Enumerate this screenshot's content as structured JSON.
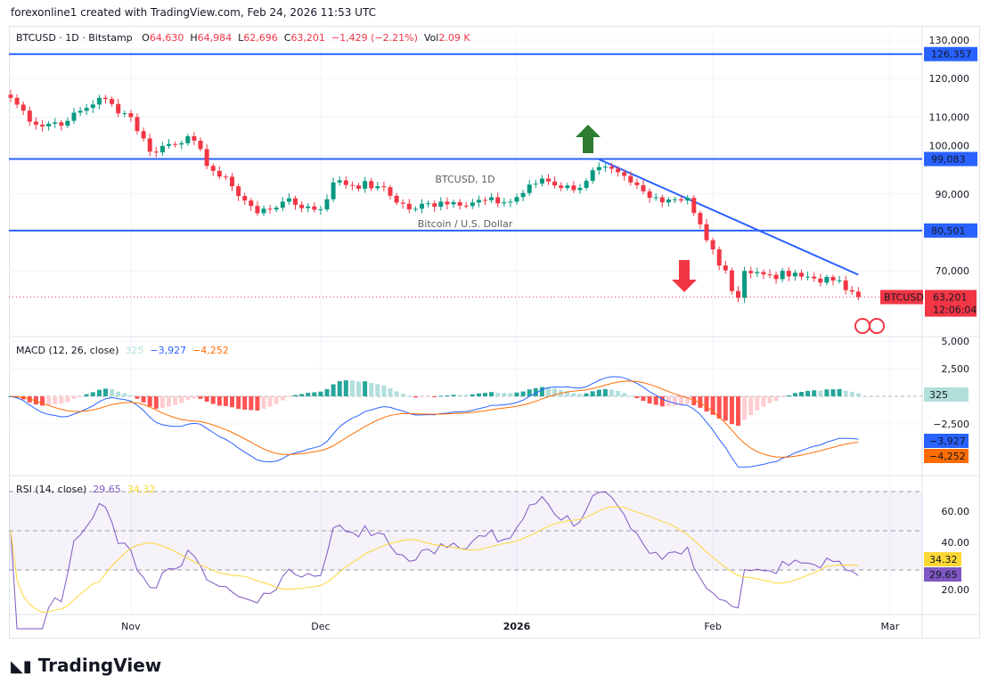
{
  "credit": "forexonline1 created with TradingView.com, Feb 24, 2026 11:53 UTC",
  "legend": {
    "symbol": "BTCUSD · 1D · Bitstamp",
    "o_label": "O",
    "o": "64,630",
    "h_label": "H",
    "h": "64,984",
    "l_label": "L",
    "l": "62,696",
    "c_label": "C",
    "c": "63,201",
    "change": "−1,429 (−2.21%)",
    "vol_label": "Vol",
    "vol": "2.09 K"
  },
  "watermark": {
    "title": "BTCUSD, 1D",
    "subtitle": "Bitcoin / U.S. Dollar"
  },
  "logo": "TradingView",
  "colors": {
    "up": "#089981",
    "down": "#f23645",
    "level": "#2962ff",
    "macd": "#2962ff",
    "signal": "#ff6d00",
    "rsi": "#7e57c2",
    "rsi_ma": "#fdd835"
  },
  "chart_data": [
    {
      "type": "candlestick",
      "symbol": "BTCUSD",
      "interval": "1D",
      "ylim": [
        55000,
        132000
      ],
      "y_ticks": [
        "130,000",
        "120,000",
        "110,000",
        "100,000",
        "90,000",
        "70,000"
      ],
      "x_ticks": [
        "Nov",
        "Dec",
        "2026",
        "Feb",
        "Mar"
      ],
      "start_date": "2025-10-13",
      "close_keypoints": [
        [
          "2025-10-13",
          115000
        ],
        [
          "2025-10-17",
          108000
        ],
        [
          "2025-10-22",
          109000
        ],
        [
          "2025-10-27",
          115000
        ],
        [
          "2025-11-01",
          110000
        ],
        [
          "2025-11-04",
          101000
        ],
        [
          "2025-11-10",
          105000
        ],
        [
          "2025-11-14",
          96000
        ],
        [
          "2025-11-17",
          92000
        ],
        [
          "2025-11-21",
          85000
        ],
        [
          "2025-11-25",
          88000
        ],
        [
          "2025-12-01",
          86000
        ],
        [
          "2025-12-03",
          93000
        ],
        [
          "2025-12-10",
          92000
        ],
        [
          "2025-12-15",
          86000
        ],
        [
          "2025-12-20",
          88000
        ],
        [
          "2025-12-31",
          88000
        ],
        [
          "2026-01-05",
          94000
        ],
        [
          "2026-01-10",
          91000
        ],
        [
          "2026-01-14",
          97000
        ],
        [
          "2026-01-19",
          93000
        ],
        [
          "2026-01-22",
          89000
        ],
        [
          "2026-01-28",
          89000
        ],
        [
          "2026-01-31",
          78000
        ],
        [
          "2026-02-05",
          63000
        ],
        [
          "2026-02-06",
          70000
        ],
        [
          "2026-02-10",
          69000
        ],
        [
          "2026-02-15",
          68500
        ],
        [
          "2026-02-20",
          67500
        ],
        [
          "2026-02-23",
          64630
        ],
        [
          "2026-02-24",
          63201
        ]
      ],
      "levels": [
        {
          "value": 126357,
          "label": "126,357"
        },
        {
          "value": 99083,
          "label": "99,083"
        },
        {
          "value": 80501,
          "label": "80,501"
        }
      ],
      "trendline": [
        [
          "2026-01-14",
          99000
        ],
        [
          "2026-02-24",
          69000
        ]
      ],
      "last_price": {
        "label": "BTCUSD",
        "value": "63,201",
        "countdown": "12:06:04"
      }
    },
    {
      "type": "line",
      "name": "MACD (12, 26, close)",
      "values_shown": {
        "hist": "325",
        "macd": "−3,927",
        "signal": "−4,252"
      },
      "y_ticks": [
        "5,000",
        "2,500",
        "−2,500"
      ]
    },
    {
      "type": "line",
      "name": "RSI (14, close)",
      "values_shown": {
        "rsi": "29.65",
        "ma": "34.32"
      },
      "y_ticks": [
        "60.00",
        "40.00",
        "20.00"
      ],
      "bands": [
        70,
        50,
        30
      ]
    }
  ]
}
